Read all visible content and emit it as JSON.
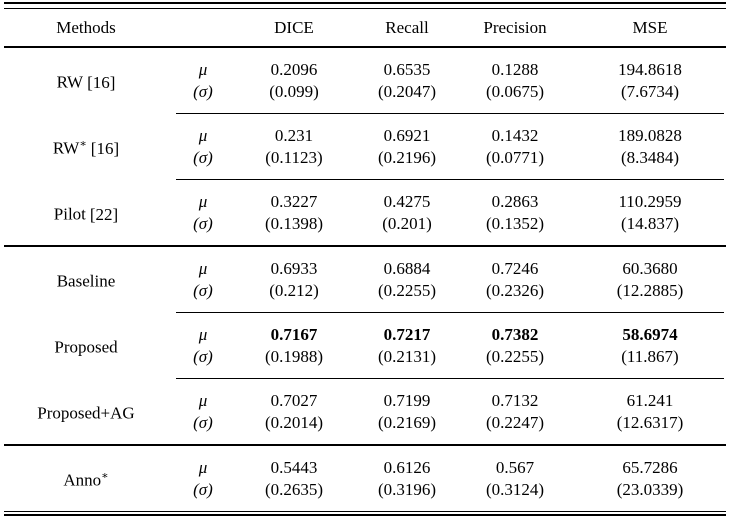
{
  "table": {
    "headers": [
      "Methods",
      "",
      "DICE",
      "Recall",
      "Precision",
      "MSE"
    ],
    "stat_labels": {
      "mu": "μ",
      "sigma": "(σ)"
    },
    "rows": [
      {
        "name": "RW",
        "sup": "",
        "ref": "[16]",
        "mu": [
          "0.2096",
          "0.6535",
          "0.1288",
          "194.8618"
        ],
        "sigma": [
          "(0.099)",
          "(0.2047)",
          "(0.0675)",
          "(7.6734)"
        ]
      },
      {
        "name": "RW",
        "sup": "∗",
        "ref": "[16]",
        "mu": [
          "0.231",
          "0.6921",
          "0.1432",
          "189.0828"
        ],
        "sigma": [
          "(0.1123)",
          "(0.2196)",
          "(0.0771)",
          "(8.3484)"
        ]
      },
      {
        "name": "Pilot",
        "sup": "",
        "ref": "[22]",
        "mu": [
          "0.3227",
          "0.4275",
          "0.2863",
          "110.2959"
        ],
        "sigma": [
          "(0.1398)",
          "(0.201)",
          "(0.1352)",
          "(14.837)"
        ]
      },
      {
        "name": "Baseline",
        "sup": "",
        "ref": "",
        "mu": [
          "0.6933",
          "0.6884",
          "0.7246",
          "60.3680"
        ],
        "sigma": [
          "(0.212)",
          "(0.2255)",
          "(0.2326)",
          "(12.2885)"
        ]
      },
      {
        "name": "Proposed",
        "sup": "",
        "ref": "",
        "mu": [
          "0.7167",
          "0.7217",
          "0.7382",
          "58.6974"
        ],
        "sigma": [
          "(0.1988)",
          "(0.2131)",
          "(0.2255)",
          "(11.867)"
        ]
      },
      {
        "name": "Proposed+AG",
        "sup": "",
        "ref": "",
        "mu": [
          "0.7027",
          "0.7199",
          "0.7132",
          "61.241"
        ],
        "sigma": [
          "(0.2014)",
          "(0.2169)",
          "(0.2247)",
          "(12.6317)"
        ]
      },
      {
        "name": "Anno",
        "sup": "∗",
        "ref": "",
        "mu": [
          "0.5443",
          "0.6126",
          "0.567",
          "65.7286"
        ],
        "sigma": [
          "(0.2635)",
          "(0.3196)",
          "(0.3124)",
          "(23.0339)"
        ]
      }
    ],
    "colors": {
      "text": "#000000",
      "background": "#ffffff",
      "rule": "#000000"
    }
  }
}
